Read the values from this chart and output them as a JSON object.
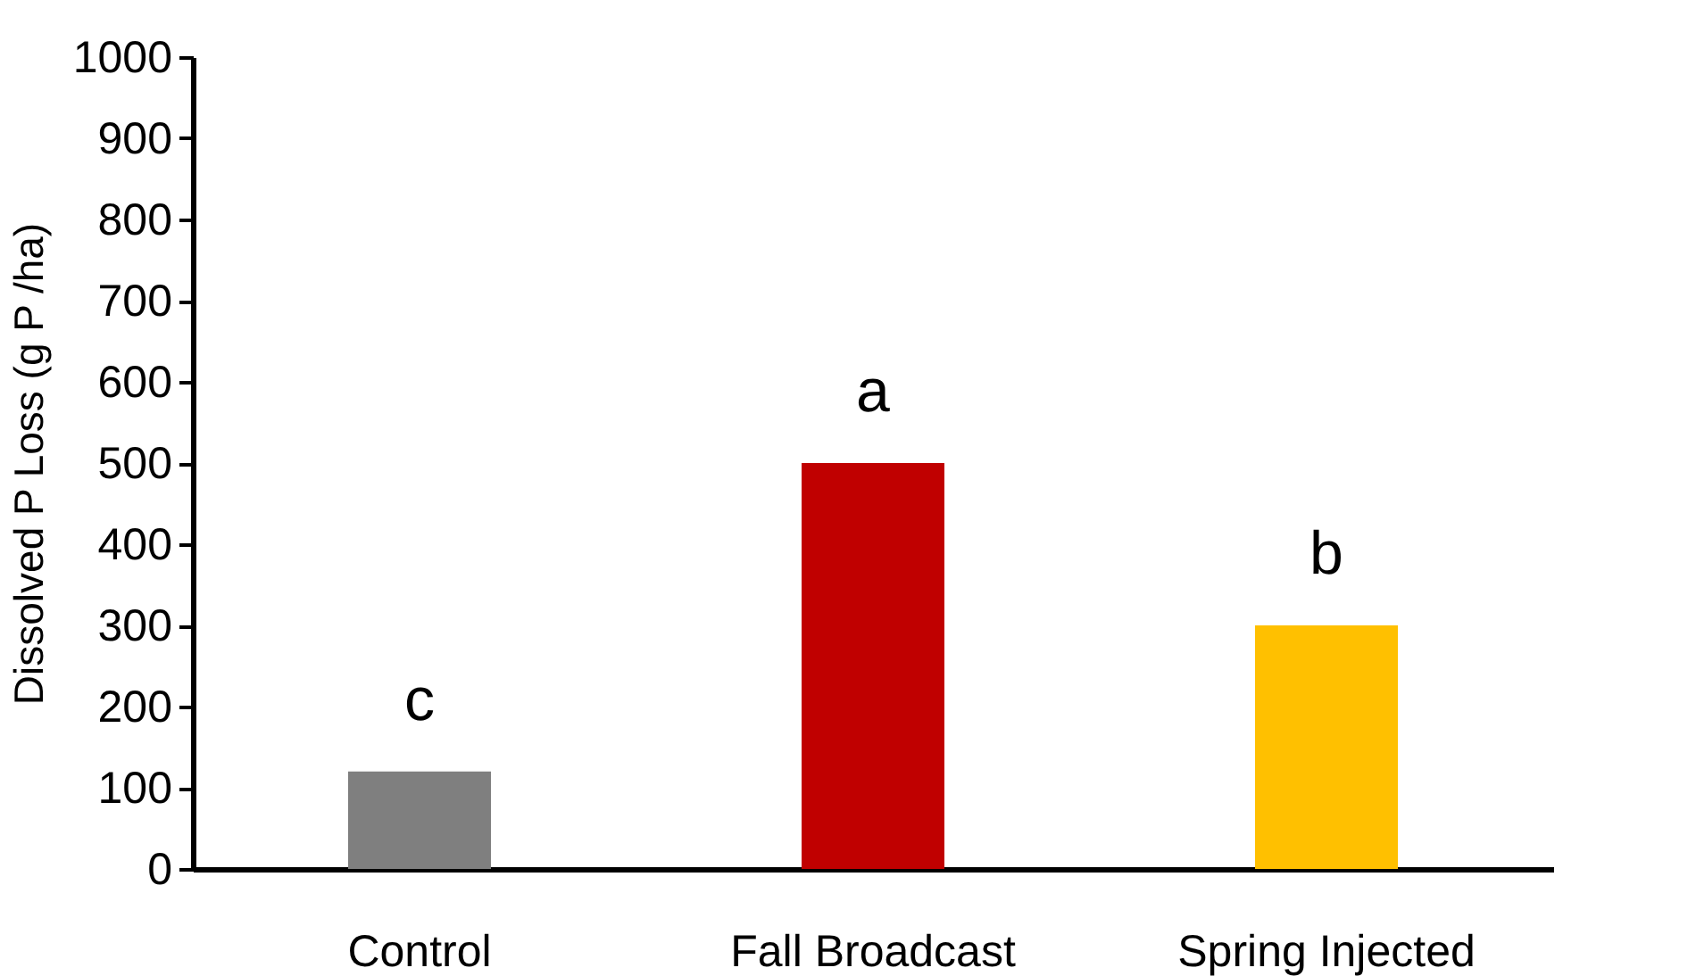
{
  "chart_data": {
    "type": "bar",
    "ylabel": "Dissolved P Loss (g P /ha)",
    "categories": [
      "Control",
      "Fall Broadcast",
      "Spring Injected"
    ],
    "values": [
      120,
      500,
      300
    ],
    "colors": [
      "#7f7f7f",
      "#c00000",
      "#ffc000"
    ],
    "ylim": [
      0,
      1000
    ],
    "yticks": [
      0,
      100,
      200,
      300,
      400,
      500,
      600,
      700,
      800,
      900,
      1000
    ],
    "grid": false,
    "annotations": [
      "c",
      "a",
      "b"
    ]
  }
}
